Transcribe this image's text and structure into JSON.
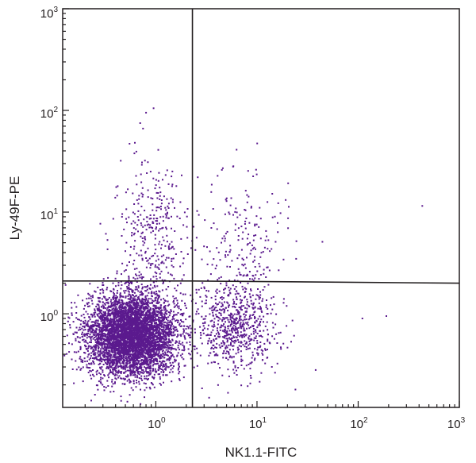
{
  "chart_data": {
    "type": "scatter",
    "xlabel": "NK1.1-FITC",
    "ylabel": "Ly-49F-PE",
    "xscale": "log",
    "yscale": "log",
    "xlim": [
      0.12,
      1000
    ],
    "ylim": [
      0.12,
      1000
    ],
    "x_ticks": [
      {
        "base": "10",
        "exp": "0",
        "value": 1
      },
      {
        "base": "10",
        "exp": "1",
        "value": 10
      },
      {
        "base": "10",
        "exp": "2",
        "value": 100
      },
      {
        "base": "10",
        "exp": "3",
        "value": 1000
      }
    ],
    "y_ticks": [
      {
        "base": "10",
        "exp": "0",
        "value": 1
      },
      {
        "base": "10",
        "exp": "1",
        "value": 10
      },
      {
        "base": "10",
        "exp": "2",
        "value": 100
      },
      {
        "base": "10",
        "exp": "3",
        "value": 1000
      }
    ],
    "grid": false,
    "legend": "none",
    "point_color": "#5b1a8e",
    "quadrant_gates": {
      "x": 2.3,
      "y_left": 2.1,
      "y_right": 2.0,
      "color": "#231f20"
    },
    "populations": [
      {
        "region": "lower-left",
        "center": [
          0.58,
          0.62
        ],
        "spread_decades": [
          0.22,
          0.2
        ],
        "count": 5200
      },
      {
        "region": "lower-right",
        "center": [
          6.0,
          0.75
        ],
        "spread_decades": [
          0.2,
          0.22
        ],
        "count": 700
      },
      {
        "region": "upper-left",
        "center": [
          0.95,
          6.0
        ],
        "spread_decades": [
          0.18,
          0.35
        ],
        "count": 330
      },
      {
        "region": "upper-right",
        "center": [
          7.0,
          5.0
        ],
        "spread_decades": [
          0.22,
          0.3
        ],
        "count": 180
      }
    ],
    "outliers": [
      [
        0.8,
        95
      ],
      [
        0.95,
        105
      ],
      [
        0.7,
        75
      ],
      [
        0.62,
        48
      ],
      [
        0.55,
        47
      ],
      [
        430,
        11.5
      ],
      [
        110,
        0.9
      ],
      [
        190,
        0.95
      ],
      [
        38,
        0.28
      ],
      [
        24,
        0.18
      ],
      [
        0.23,
        0.14
      ],
      [
        5.8,
        28
      ],
      [
        4.5,
        26
      ],
      [
        4.6,
        27
      ],
      [
        2.6,
        22
      ],
      [
        0.42,
        18
      ],
      [
        0.45,
        32
      ],
      [
        1.8,
        23
      ]
    ]
  }
}
